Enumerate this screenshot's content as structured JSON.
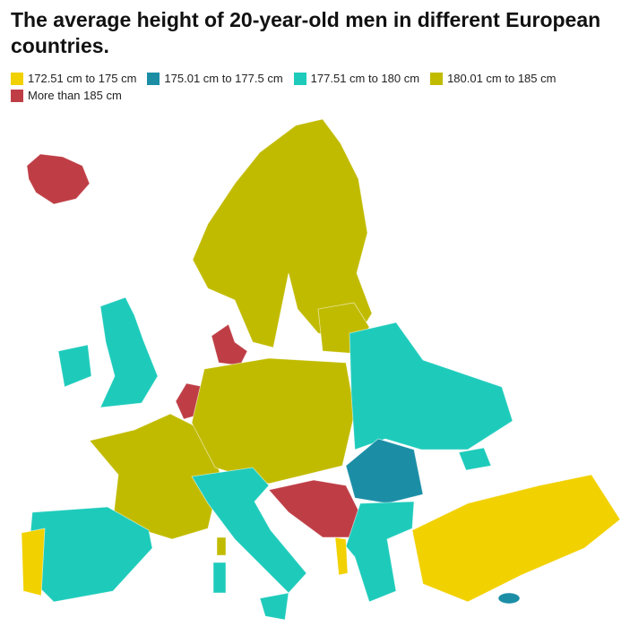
{
  "title": "The average height of 20-year-old men in different European countries.",
  "legend": [
    {
      "label": "172.51 cm to 175 cm",
      "color": "#f2d100"
    },
    {
      "label": "175.01 cm to 177.5 cm",
      "color": "#1b8ea6"
    },
    {
      "label": "177.51 cm to 180 cm",
      "color": "#1ecbbb"
    },
    {
      "label": "180.01 cm to 185 cm",
      "color": "#c1bb00"
    },
    {
      "label": "More than 185 cm",
      "color": "#bf3e46"
    }
  ]
}
